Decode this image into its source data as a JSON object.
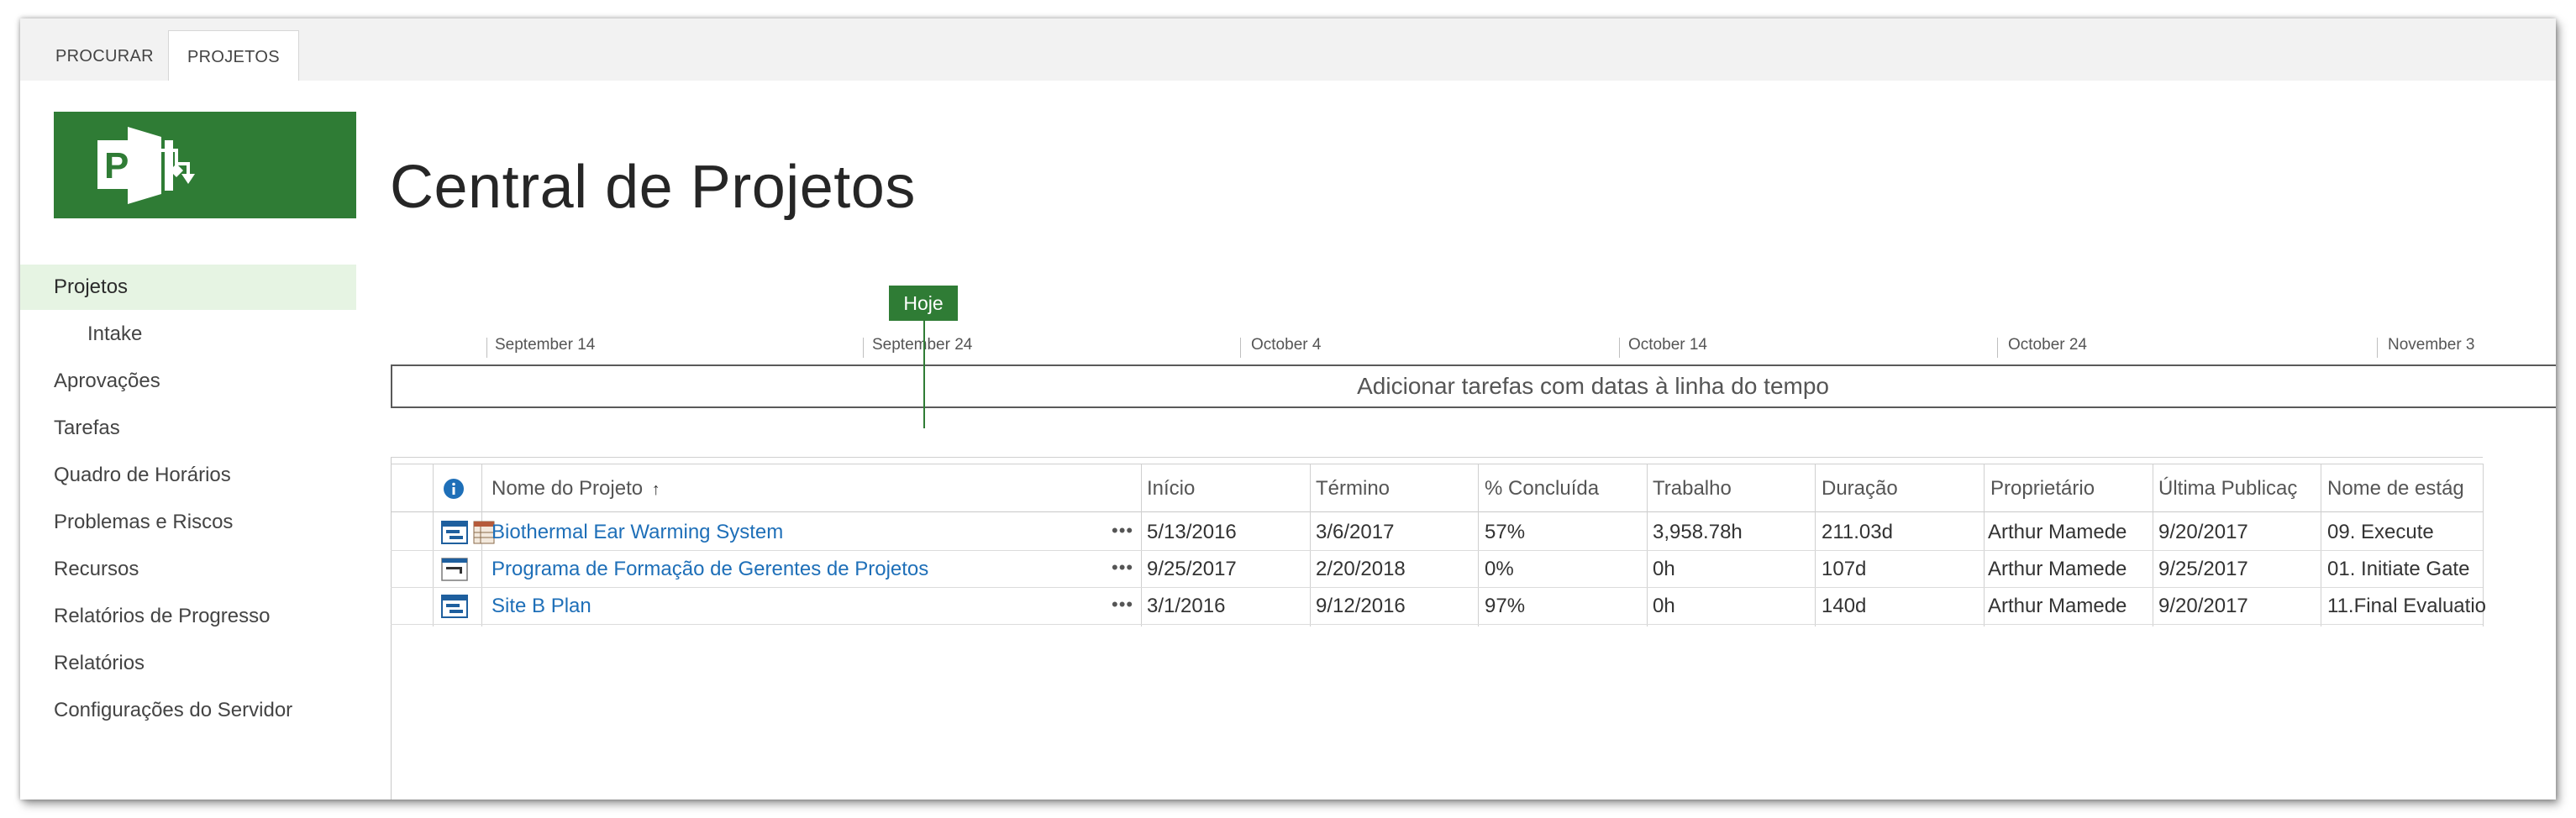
{
  "ribbon": {
    "tabs": [
      {
        "label": "PROCURAR",
        "active": false
      },
      {
        "label": "PROJETOS",
        "active": true
      }
    ]
  },
  "logo": {
    "letter": "P",
    "color": "#2f7c35"
  },
  "nav": {
    "items": [
      {
        "label": "Projetos",
        "selected": true
      },
      {
        "label": "Intake",
        "sub": true
      },
      {
        "label": "Aprovações"
      },
      {
        "label": "Tarefas"
      },
      {
        "label": "Quadro de Horários"
      },
      {
        "label": "Problemas e Riscos"
      },
      {
        "label": "Recursos"
      },
      {
        "label": "Relatórios de Progresso"
      },
      {
        "label": "Relatórios"
      },
      {
        "label": "Configurações do Servidor"
      }
    ]
  },
  "page": {
    "title": "Central de Projetos"
  },
  "timeline": {
    "today_label": "Hoje",
    "dates": [
      "September 14",
      "September 24",
      "October 4",
      "October 14",
      "October 24",
      "November 3"
    ],
    "empty_message": "Adicionar tarefas com datas à linha do tempo"
  },
  "grid": {
    "columns": [
      {
        "key": "info",
        "label": ""
      },
      {
        "key": "name",
        "label": "Nome do Projeto",
        "sorted": "asc"
      },
      {
        "key": "start",
        "label": "Início"
      },
      {
        "key": "finish",
        "label": "Término"
      },
      {
        "key": "pct",
        "label": "% Concluída"
      },
      {
        "key": "work",
        "label": "Trabalho"
      },
      {
        "key": "duration",
        "label": "Duração"
      },
      {
        "key": "owner",
        "label": "Proprietário"
      },
      {
        "key": "published",
        "label": "Última Publicaç"
      },
      {
        "key": "stage",
        "label": "Nome de estág"
      }
    ],
    "rows": [
      {
        "name": "Biothermal Ear Warming System",
        "start": "5/13/2016",
        "finish": "3/6/2017",
        "pct": "57%",
        "work": "3,958.78h",
        "duration": "211.03d",
        "owner": "Arthur Mamede",
        "published": "9/20/2017",
        "stage": "09. Execute",
        "icon": "project-icon",
        "extra_icon": "calendar-icon"
      },
      {
        "name": "Programa de Formação de Gerentes de Projetos",
        "start": "9/25/2017",
        "finish": "2/20/2018",
        "pct": "0%",
        "work": "0h",
        "duration": "107d",
        "owner": "Arthur Mamede",
        "published": "9/25/2017",
        "stage": "01. Initiate Gate",
        "icon": "proposal-icon"
      },
      {
        "name": "Site B Plan",
        "start": "3/1/2016",
        "finish": "9/12/2016",
        "pct": "97%",
        "work": "0h",
        "duration": "140d",
        "owner": "Arthur Mamede",
        "published": "9/20/2017",
        "stage": "11.Final Evaluatio",
        "icon": "project-icon"
      }
    ],
    "more_label": "•••"
  }
}
